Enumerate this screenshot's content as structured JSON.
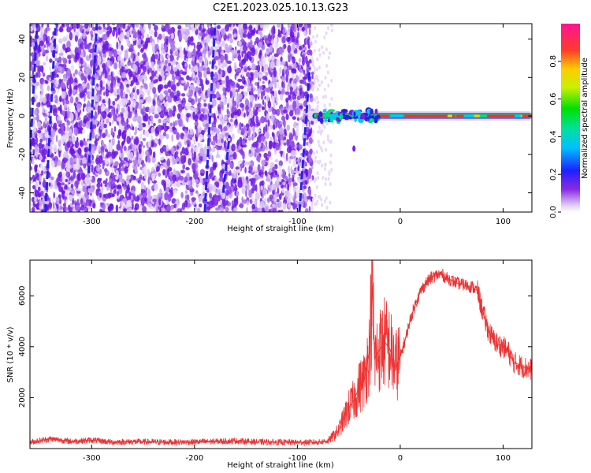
{
  "figure_title": "C2E1.2023.025.10.13.G23",
  "colors": {
    "snr_line": "#ee3333",
    "spectrum_low": "#e8d8f6",
    "spectrum_mid": "#7a1ee8",
    "spectrum_high": "#ff1f3a"
  },
  "chart_data": [
    {
      "type": "heatmap",
      "title": "",
      "xlabel": "Height of straight line (km)",
      "ylabel": "Frequency (Hz)",
      "xlim": [
        -360,
        128
      ],
      "ylim": [
        -50,
        48
      ],
      "x_ticks": [
        -300,
        -200,
        -100,
        0,
        100
      ],
      "y_ticks": [
        -40,
        -20,
        0,
        20,
        40
      ],
      "colorbar": {
        "label": "Normalized spectral amplitude",
        "range": [
          0.0,
          1.0
        ],
        "ticks": [
          "0.0",
          "0.2",
          "0.4",
          "0.6",
          "0.8"
        ],
        "colormap": "rainbow"
      },
      "features": {
        "noise_region_x": [
          -360,
          -85
        ],
        "signal_band": {
          "x": [
            -90,
            128
          ],
          "frequency": 0
        }
      }
    },
    {
      "type": "line",
      "title": "",
      "xlabel": "Height of straight line (km)",
      "ylabel": "SNR (10 * v/v)",
      "xlim": [
        -360,
        128
      ],
      "ylim": [
        0,
        7400
      ],
      "x_ticks": [
        -300,
        -200,
        -100,
        0,
        100
      ],
      "y_ticks": [
        2000,
        4000,
        6000
      ],
      "series": [
        {
          "x": [
            -360,
            -340,
            -320,
            -300,
            -280,
            -260,
            -240,
            -220,
            -200,
            -180,
            -160,
            -140,
            -120,
            -100,
            -80,
            -70,
            -60,
            -50,
            -45,
            -40,
            -35,
            -30,
            -27,
            -25,
            -20,
            -15,
            -10,
            -5,
            0,
            5,
            10,
            15,
            20,
            25,
            30,
            35,
            40,
            45,
            50,
            55,
            60,
            65,
            70,
            75,
            80,
            85,
            90,
            95,
            100,
            105,
            110,
            115,
            120,
            128
          ],
          "y": [
            250,
            380,
            280,
            330,
            250,
            270,
            260,
            250,
            260,
            280,
            300,
            260,
            250,
            240,
            250,
            300,
            700,
            1600,
            1900,
            2400,
            2700,
            3800,
            6400,
            3500,
            3900,
            4200,
            3900,
            3200,
            3600,
            4300,
            5100,
            5700,
            6200,
            6500,
            6700,
            6800,
            6850,
            6700,
            6600,
            6500,
            6450,
            6400,
            6350,
            6200,
            5400,
            4700,
            4300,
            4100,
            4000,
            3800,
            3400,
            3300,
            3200,
            3100
          ]
        }
      ]
    }
  ]
}
